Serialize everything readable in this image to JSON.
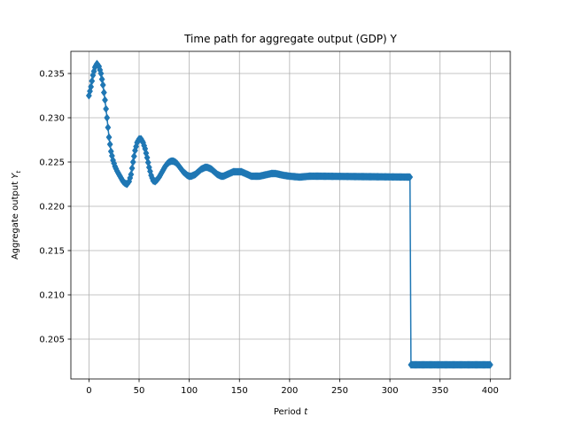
{
  "chart_data": {
    "type": "line",
    "title": "Time path for aggregate output (GDP) Y",
    "xlabel": "Period t",
    "xlabel_main": "Period ",
    "xlabel_italic": "t",
    "ylabel": "Aggregate output Y_t",
    "ylabel_main": "Aggregate output ",
    "ylabel_italic": "Y",
    "ylabel_sub": "t",
    "xlim": [
      -18,
      420
    ],
    "ylim": [
      0.2005,
      0.2375
    ],
    "xticks": [
      0,
      50,
      100,
      150,
      200,
      250,
      300,
      350,
      400
    ],
    "xtick_labels": [
      "0",
      "50",
      "100",
      "150",
      "200",
      "250",
      "300",
      "350",
      "400"
    ],
    "yticks": [
      0.205,
      0.21,
      0.215,
      0.22,
      0.225,
      0.23,
      0.235
    ],
    "ytick_labels": [
      "0.205",
      "0.210",
      "0.215",
      "0.220",
      "0.225",
      "0.230",
      "0.235"
    ],
    "grid": true,
    "marker": "diamond",
    "colors": {
      "series": "#1f77b4",
      "grid": "#b0b0b0",
      "axis": "#000000"
    },
    "series": [
      {
        "x_start": 0,
        "x_end": 400,
        "keypoints": [
          [
            0,
            0.2325
          ],
          [
            2,
            0.2335
          ],
          [
            4,
            0.2348
          ],
          [
            6,
            0.2357
          ],
          [
            8,
            0.2361
          ],
          [
            10,
            0.2358
          ],
          [
            12,
            0.235
          ],
          [
            14,
            0.2337
          ],
          [
            16,
            0.232
          ],
          [
            18,
            0.23
          ],
          [
            20,
            0.2278
          ],
          [
            22,
            0.2262
          ],
          [
            24,
            0.2252
          ],
          [
            26,
            0.2245
          ],
          [
            28,
            0.224
          ],
          [
            30,
            0.2236
          ],
          [
            32,
            0.2232
          ],
          [
            34,
            0.2228
          ],
          [
            36,
            0.2226
          ],
          [
            38,
            0.2225
          ],
          [
            40,
            0.2228
          ],
          [
            42,
            0.2236
          ],
          [
            44,
            0.225
          ],
          [
            46,
            0.2263
          ],
          [
            48,
            0.2272
          ],
          [
            50,
            0.2276
          ],
          [
            52,
            0.2276
          ],
          [
            54,
            0.2272
          ],
          [
            56,
            0.2265
          ],
          [
            58,
            0.2255
          ],
          [
            60,
            0.2244
          ],
          [
            62,
            0.2235
          ],
          [
            64,
            0.2229
          ],
          [
            66,
            0.2228
          ],
          [
            68,
            0.223
          ],
          [
            70,
            0.2233
          ],
          [
            72,
            0.2237
          ],
          [
            74,
            0.2241
          ],
          [
            76,
            0.2245
          ],
          [
            78,
            0.2248
          ],
          [
            80,
            0.225
          ],
          [
            82,
            0.2251
          ],
          [
            84,
            0.2251
          ],
          [
            86,
            0.225
          ],
          [
            88,
            0.2248
          ],
          [
            90,
            0.2245
          ],
          [
            92,
            0.2242
          ],
          [
            94,
            0.2239
          ],
          [
            96,
            0.2237
          ],
          [
            98,
            0.2235
          ],
          [
            100,
            0.2234
          ],
          [
            102,
            0.2234
          ],
          [
            104,
            0.2235
          ],
          [
            106,
            0.2236
          ],
          [
            108,
            0.2238
          ],
          [
            110,
            0.224
          ],
          [
            112,
            0.2242
          ],
          [
            114,
            0.2243
          ],
          [
            116,
            0.2244
          ],
          [
            118,
            0.2244
          ],
          [
            120,
            0.2243
          ],
          [
            122,
            0.2242
          ],
          [
            124,
            0.224
          ],
          [
            126,
            0.2238
          ],
          [
            128,
            0.2236
          ],
          [
            130,
            0.2235
          ],
          [
            132,
            0.2234
          ],
          [
            134,
            0.2234
          ],
          [
            136,
            0.2235
          ],
          [
            138,
            0.2236
          ],
          [
            140,
            0.2237
          ],
          [
            142,
            0.2238
          ],
          [
            144,
            0.2239
          ],
          [
            146,
            0.2239
          ],
          [
            148,
            0.2239
          ],
          [
            150,
            0.2239
          ],
          [
            152,
            0.2239
          ],
          [
            154,
            0.2238
          ],
          [
            156,
            0.2237
          ],
          [
            158,
            0.2236
          ],
          [
            160,
            0.2235
          ],
          [
            162,
            0.2234
          ],
          [
            166,
            0.2234
          ],
          [
            170,
            0.2234
          ],
          [
            174,
            0.2235
          ],
          [
            178,
            0.2236
          ],
          [
            182,
            0.2237
          ],
          [
            186,
            0.2237
          ],
          [
            190,
            0.2236
          ],
          [
            194,
            0.2235
          ],
          [
            200,
            0.2234
          ],
          [
            210,
            0.2233
          ],
          [
            220,
            0.2234
          ],
          [
            230,
            0.2234
          ],
          [
            320,
            0.2233
          ],
          [
            321,
            0.2021
          ],
          [
            400,
            0.2021
          ]
        ]
      }
    ]
  }
}
